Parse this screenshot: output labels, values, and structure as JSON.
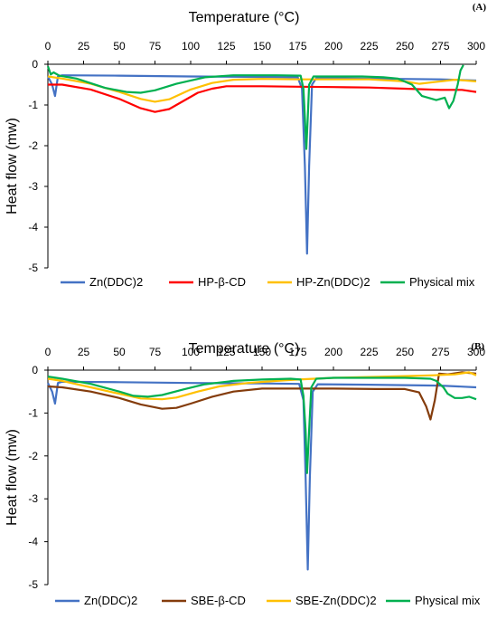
{
  "chart_data": [
    {
      "type": "line",
      "panel_label": "(A)",
      "xlabel": "Temperature (°C)",
      "ylabel": "Heat flow (mw)",
      "xlim": [
        0,
        300
      ],
      "ylim": [
        -5,
        0
      ],
      "x_ticks": [
        "0",
        "25",
        "50",
        "75",
        "100",
        "125",
        "150",
        "175",
        "200",
        "225",
        "250",
        "275",
        "300"
      ],
      "y_ticks": [
        "0",
        "-1",
        "-2",
        "-3",
        "-4",
        "-5"
      ],
      "x_axis_position": "top",
      "legend_position": "bottom",
      "series": [
        {
          "name": "Zn(DDC)2",
          "color": "#4472C4",
          "points": [
            [
              0,
              -0.3
            ],
            [
              3,
              -0.5
            ],
            [
              5,
              -0.78
            ],
            [
              7,
              -0.3
            ],
            [
              10,
              -0.27
            ],
            [
              50,
              -0.28
            ],
            [
              100,
              -0.3
            ],
            [
              150,
              -0.31
            ],
            [
              175,
              -0.32
            ],
            [
              178,
              -0.6
            ],
            [
              180,
              -2.5
            ],
            [
              181.5,
              -4.65
            ],
            [
              183,
              -2.5
            ],
            [
              185,
              -0.5
            ],
            [
              188,
              -0.34
            ],
            [
              225,
              -0.35
            ],
            [
              275,
              -0.37
            ],
            [
              300,
              -0.4
            ]
          ]
        },
        {
          "name": "HP-β-CD",
          "color": "#FF0000",
          "points": [
            [
              0,
              -0.5
            ],
            [
              10,
              -0.5
            ],
            [
              30,
              -0.62
            ],
            [
              50,
              -0.85
            ],
            [
              65,
              -1.08
            ],
            [
              75,
              -1.17
            ],
            [
              85,
              -1.1
            ],
            [
              95,
              -0.9
            ],
            [
              105,
              -0.7
            ],
            [
              115,
              -0.6
            ],
            [
              125,
              -0.54
            ],
            [
              150,
              -0.54
            ],
            [
              175,
              -0.55
            ],
            [
              200,
              -0.56
            ],
            [
              225,
              -0.57
            ],
            [
              250,
              -0.6
            ],
            [
              275,
              -0.63
            ],
            [
              290,
              -0.63
            ],
            [
              300,
              -0.68
            ]
          ]
        },
        {
          "name": "HP-Zn(DDC)2",
          "color": "#FFC000",
          "points": [
            [
              0,
              -0.3
            ],
            [
              10,
              -0.35
            ],
            [
              30,
              -0.48
            ],
            [
              50,
              -0.68
            ],
            [
              65,
              -0.85
            ],
            [
              75,
              -0.92
            ],
            [
              85,
              -0.86
            ],
            [
              100,
              -0.62
            ],
            [
              115,
              -0.46
            ],
            [
              130,
              -0.38
            ],
            [
              150,
              -0.36
            ],
            [
              175,
              -0.37
            ],
            [
              200,
              -0.37
            ],
            [
              225,
              -0.37
            ],
            [
              250,
              -0.42
            ],
            [
              260,
              -0.48
            ],
            [
              270,
              -0.44
            ],
            [
              285,
              -0.38
            ],
            [
              300,
              -0.42
            ]
          ]
        },
        {
          "name": "Physical mix",
          "color": "#00B050",
          "points": [
            [
              0,
              -0.05
            ],
            [
              2,
              -0.25
            ],
            [
              4,
              -0.2
            ],
            [
              8,
              -0.28
            ],
            [
              20,
              -0.35
            ],
            [
              40,
              -0.58
            ],
            [
              55,
              -0.68
            ],
            [
              65,
              -0.7
            ],
            [
              75,
              -0.64
            ],
            [
              90,
              -0.48
            ],
            [
              110,
              -0.32
            ],
            [
              130,
              -0.27
            ],
            [
              160,
              -0.27
            ],
            [
              177,
              -0.28
            ],
            [
              179,
              -0.6
            ],
            [
              180,
              -1.3
            ],
            [
              181,
              -2.08
            ],
            [
              182,
              -1.3
            ],
            [
              183,
              -0.5
            ],
            [
              186,
              -0.3
            ],
            [
              200,
              -0.3
            ],
            [
              220,
              -0.3
            ],
            [
              235,
              -0.32
            ],
            [
              245,
              -0.35
            ],
            [
              255,
              -0.5
            ],
            [
              262,
              -0.78
            ],
            [
              272,
              -0.88
            ],
            [
              278,
              -0.82
            ],
            [
              281,
              -1.08
            ],
            [
              284,
              -0.9
            ],
            [
              287,
              -0.5
            ],
            [
              289,
              -0.15
            ],
            [
              291,
              -0.02
            ]
          ]
        }
      ]
    },
    {
      "type": "line",
      "panel_label": "(B)",
      "xlabel": "Temperature (°C)",
      "ylabel": "Heat flow (mw)",
      "xlim": [
        0,
        300
      ],
      "ylim": [
        -5,
        0
      ],
      "x_ticks": [
        "0",
        "25",
        "50",
        "75",
        "100",
        "125",
        "150",
        "175",
        "200",
        "225",
        "250",
        "275",
        "300"
      ],
      "y_ticks": [
        "0",
        "-1",
        "-2",
        "-3",
        "-4",
        "-5"
      ],
      "x_axis_position": "top",
      "legend_position": "bottom",
      "series": [
        {
          "name": "Zn(DDC)2",
          "color": "#4472C4",
          "points": [
            [
              0,
              -0.3
            ],
            [
              3,
              -0.5
            ],
            [
              5,
              -0.78
            ],
            [
              7,
              -0.3
            ],
            [
              10,
              -0.27
            ],
            [
              50,
              -0.28
            ],
            [
              100,
              -0.3
            ],
            [
              150,
              -0.31
            ],
            [
              176,
              -0.32
            ],
            [
              179,
              -0.7
            ],
            [
              180.5,
              -2.5
            ],
            [
              182,
              -4.65
            ],
            [
              183.5,
              -2.5
            ],
            [
              185.5,
              -0.5
            ],
            [
              189,
              -0.33
            ],
            [
              225,
              -0.34
            ],
            [
              275,
              -0.36
            ],
            [
              300,
              -0.4
            ]
          ]
        },
        {
          "name": "SBE-β-CD",
          "color": "#843C0C",
          "points": [
            [
              0,
              -0.38
            ],
            [
              10,
              -0.4
            ],
            [
              30,
              -0.5
            ],
            [
              50,
              -0.65
            ],
            [
              65,
              -0.8
            ],
            [
              80,
              -0.9
            ],
            [
              90,
              -0.88
            ],
            [
              100,
              -0.78
            ],
            [
              115,
              -0.62
            ],
            [
              130,
              -0.5
            ],
            [
              150,
              -0.43
            ],
            [
              175,
              -0.43
            ],
            [
              200,
              -0.43
            ],
            [
              230,
              -0.44
            ],
            [
              250,
              -0.44
            ],
            [
              260,
              -0.52
            ],
            [
              265,
              -0.85
            ],
            [
              268,
              -1.15
            ],
            [
              271,
              -0.7
            ],
            [
              274,
              -0.08
            ],
            [
              280,
              -0.1
            ],
            [
              290,
              -0.05
            ],
            [
              300,
              -0.08
            ]
          ]
        },
        {
          "name": "SBE-Zn(DDC)2",
          "color": "#FFC000",
          "points": [
            [
              0,
              -0.2
            ],
            [
              10,
              -0.25
            ],
            [
              30,
              -0.4
            ],
            [
              50,
              -0.55
            ],
            [
              65,
              -0.66
            ],
            [
              80,
              -0.68
            ],
            [
              90,
              -0.64
            ],
            [
              105,
              -0.5
            ],
            [
              120,
              -0.38
            ],
            [
              140,
              -0.3
            ],
            [
              160,
              -0.25
            ],
            [
              175,
              -0.22
            ],
            [
              200,
              -0.18
            ],
            [
              225,
              -0.16
            ],
            [
              250,
              -0.14
            ],
            [
              270,
              -0.12
            ],
            [
              285,
              -0.1
            ],
            [
              295,
              -0.05
            ],
            [
              300,
              -0.12
            ]
          ]
        },
        {
          "name": "Physical mix",
          "color": "#00B050",
          "points": [
            [
              0,
              -0.15
            ],
            [
              10,
              -0.2
            ],
            [
              30,
              -0.32
            ],
            [
              50,
              -0.5
            ],
            [
              60,
              -0.6
            ],
            [
              70,
              -0.62
            ],
            [
              80,
              -0.58
            ],
            [
              95,
              -0.45
            ],
            [
              110,
              -0.33
            ],
            [
              130,
              -0.25
            ],
            [
              150,
              -0.22
            ],
            [
              170,
              -0.2
            ],
            [
              177,
              -0.22
            ],
            [
              179,
              -0.6
            ],
            [
              180.5,
              -1.4
            ],
            [
              181.5,
              -2.4
            ],
            [
              183,
              -1.4
            ],
            [
              184.5,
              -0.4
            ],
            [
              188,
              -0.2
            ],
            [
              200,
              -0.18
            ],
            [
              225,
              -0.18
            ],
            [
              250,
              -0.18
            ],
            [
              268,
              -0.2
            ],
            [
              272,
              -0.25
            ],
            [
              277,
              -0.4
            ],
            [
              280,
              -0.55
            ],
            [
              285,
              -0.65
            ],
            [
              290,
              -0.65
            ],
            [
              295,
              -0.62
            ],
            [
              300,
              -0.68
            ]
          ]
        }
      ]
    }
  ]
}
